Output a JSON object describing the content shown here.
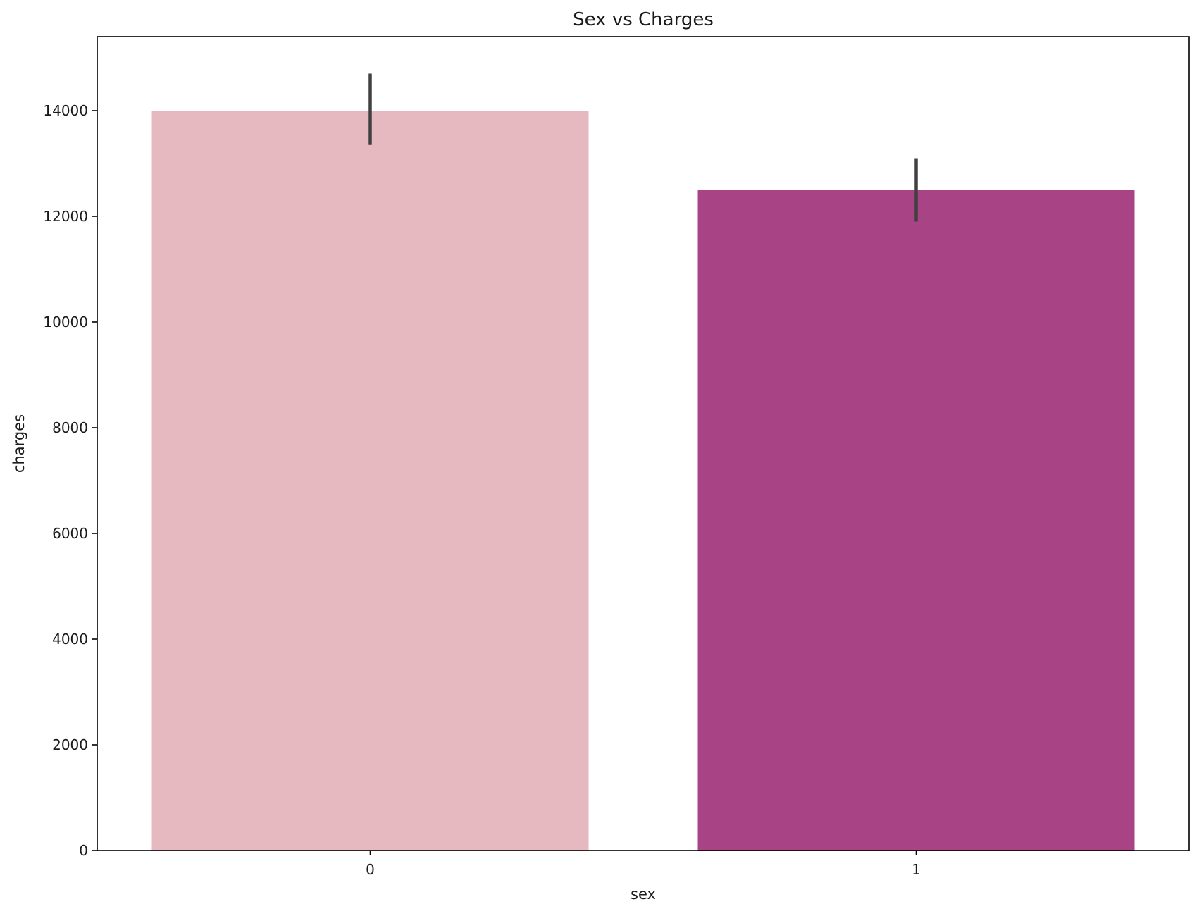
{
  "chart_data": {
    "type": "bar",
    "title": "Sex vs Charges",
    "xlabel": "sex",
    "ylabel": "charges",
    "categories": [
      "0",
      "1"
    ],
    "values": [
      14000,
      12500
    ],
    "error_bars": [
      {
        "low": 13350,
        "high": 14700
      },
      {
        "low": 11900,
        "high": 13100
      }
    ],
    "bar_colors": [
      "#e6b8c0",
      "#a84385"
    ],
    "error_bar_color": "#404040",
    "ylim": [
      0,
      15400
    ],
    "yticks": [
      0,
      2000,
      4000,
      6000,
      8000,
      10000,
      12000,
      14000
    ],
    "grid": false,
    "legend": "none"
  }
}
